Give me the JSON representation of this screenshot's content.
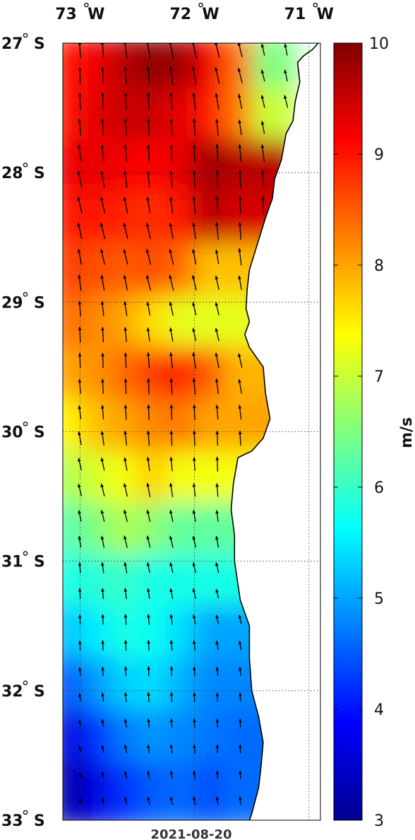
{
  "map": {
    "lon_labels": [
      {
        "deg": "73",
        "hemi": "W",
        "lon": -73
      },
      {
        "deg": "72",
        "hemi": "W",
        "lon": -72
      },
      {
        "deg": "71",
        "hemi": "W",
        "lon": -71
      }
    ],
    "lat_labels": [
      {
        "deg": "27",
        "hemi": "S",
        "lat": -27
      },
      {
        "deg": "28",
        "hemi": "S",
        "lat": -28
      },
      {
        "deg": "29",
        "hemi": "S",
        "lat": -29
      },
      {
        "deg": "30",
        "hemi": "S",
        "lat": -30
      },
      {
        "deg": "31",
        "hemi": "S",
        "lat": -31
      },
      {
        "deg": "32",
        "hemi": "S",
        "lat": -32
      },
      {
        "deg": "33",
        "hemi": "S",
        "lat": -33
      }
    ],
    "lon_range": [
      -73.15,
      -70.9
    ],
    "lat_range": [
      -33,
      -27
    ],
    "date": "2021-08-20",
    "grid": true,
    "field": "wind speed",
    "vectors": "wind direction arrows, mostly toward north-northwest"
  },
  "colorbar": {
    "unit": "m/s",
    "min": 3,
    "max": 10,
    "ticks": [
      "3",
      "4",
      "5",
      "6",
      "7",
      "8",
      "9",
      "10"
    ],
    "colormap": "jet"
  },
  "chart_data": {
    "type": "heatmap",
    "x_label": "",
    "y_label": "",
    "lat_centers": [
      -27.2,
      -27.6,
      -28.0,
      -28.4,
      -28.8,
      -29.2,
      -29.6,
      -30.0,
      -30.4,
      -30.8,
      -31.2,
      -31.6,
      -32.0,
      -32.4,
      -32.8
    ],
    "lon_centers": [
      -73.05,
      -72.8,
      -72.55,
      -72.3,
      -72.05,
      -71.8,
      -71.55,
      -71.3
    ],
    "speed_ms": [
      [
        9.0,
        9.2,
        9.6,
        9.9,
        9.8,
        9.2,
        8.4,
        6.5
      ],
      [
        9.0,
        9.3,
        9.5,
        9.5,
        9.3,
        9.0,
        8.3,
        7.0
      ],
      [
        9.2,
        9.3,
        9.2,
        9.1,
        9.3,
        9.8,
        9.6,
        null
      ],
      [
        9.0,
        9.0,
        8.9,
        8.8,
        9.0,
        9.6,
        9.4,
        null
      ],
      [
        8.7,
        8.6,
        8.5,
        8.6,
        8.4,
        7.8,
        null,
        null
      ],
      [
        8.4,
        8.2,
        8.0,
        7.6,
        7.2,
        7.2,
        null,
        null
      ],
      [
        8.0,
        8.1,
        8.4,
        8.7,
        8.9,
        8.5,
        7.9,
        null
      ],
      [
        7.4,
        7.8,
        8.0,
        8.2,
        8.3,
        8.0,
        null,
        null
      ],
      [
        6.8,
        7.1,
        7.3,
        7.7,
        7.3,
        null,
        null,
        null
      ],
      [
        6.2,
        6.5,
        6.8,
        6.6,
        6.3,
        null,
        null,
        null
      ],
      [
        5.8,
        5.9,
        6.0,
        5.8,
        5.8,
        null,
        null,
        null
      ],
      [
        5.2,
        5.5,
        5.8,
        5.7,
        5.4,
        5.0,
        null,
        null
      ],
      [
        4.4,
        4.9,
        5.3,
        5.4,
        5.1,
        4.8,
        null,
        null
      ],
      [
        3.6,
        4.2,
        4.7,
        4.9,
        4.8,
        4.7,
        4.6,
        null
      ],
      [
        3.2,
        3.6,
        4.2,
        4.5,
        4.6,
        4.4,
        4.6,
        null
      ]
    ]
  }
}
